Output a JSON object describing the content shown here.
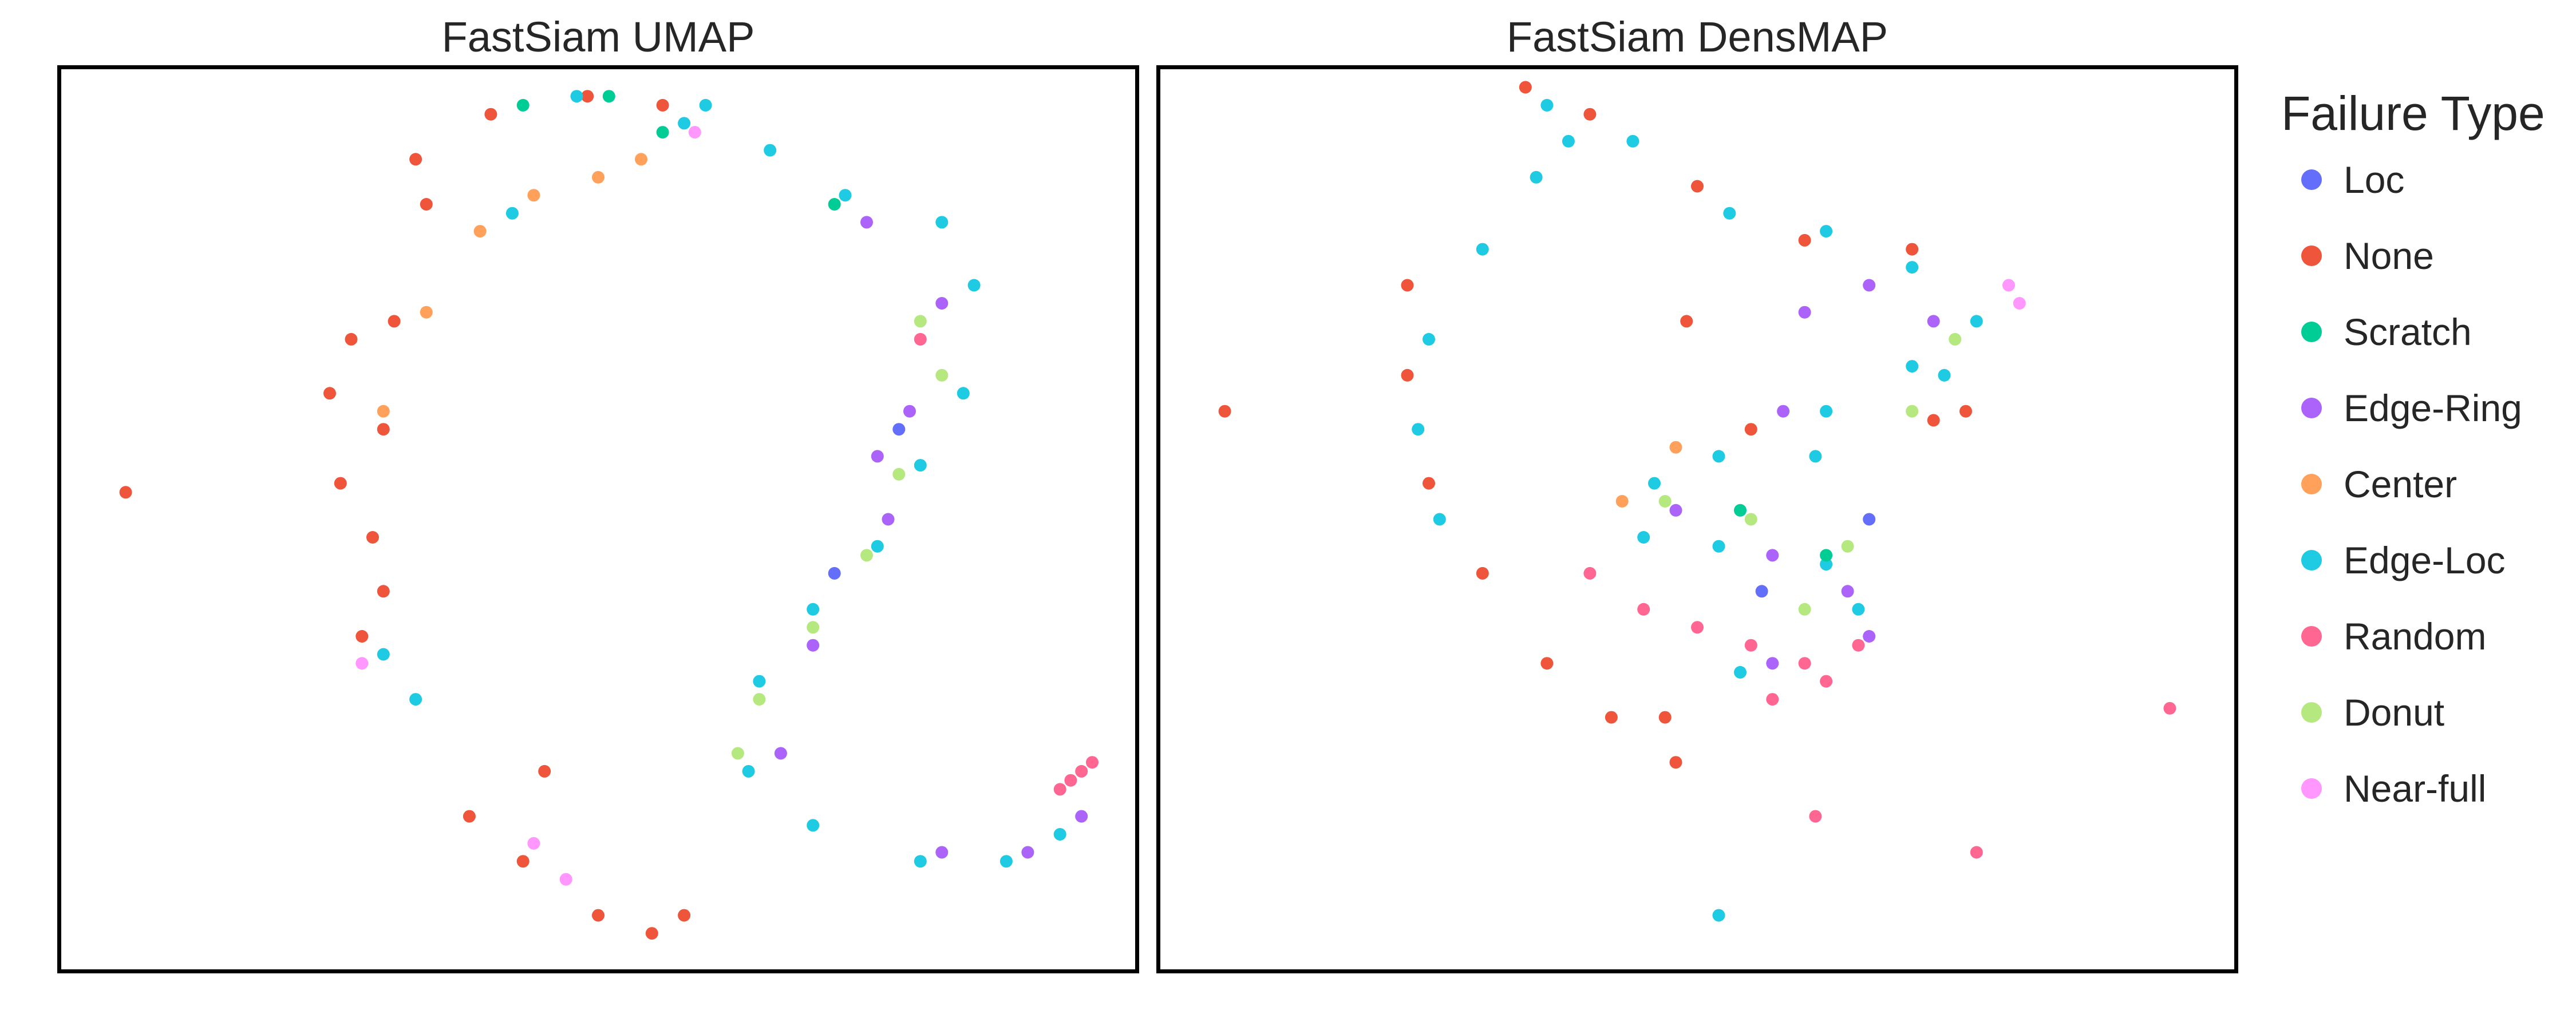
{
  "chart_data": [
    {
      "type": "scatter",
      "title": "FastSiam UMAP",
      "xlabel": "",
      "ylabel": "",
      "grid": false,
      "axis_ticks": false,
      "xlim": [
        0,
        100
      ],
      "ylim": [
        0,
        100
      ],
      "series": [
        {
          "name": "None",
          "color": "#EE553B",
          "points": [
            [
              6,
              53
            ],
            [
              34,
              85
            ],
            [
              31,
              72
            ],
            [
              30,
              60
            ],
            [
              29,
              48
            ],
            [
              28,
              37
            ],
            [
              38,
              17
            ],
            [
              43,
              12
            ],
            [
              50,
              6
            ],
            [
              55,
              4
            ],
            [
              58,
              6
            ],
            [
              45,
              22
            ],
            [
              33,
              90
            ],
            [
              40,
              95
            ],
            [
              49,
              97
            ],
            [
              56,
              96
            ],
            [
              25,
              64
            ],
            [
              27,
              70
            ],
            [
              26,
              54
            ],
            [
              30,
              42
            ]
          ]
        },
        {
          "name": "Edge-Loc",
          "color": "#1ECBE2",
          "points": [
            [
              58,
              94
            ],
            [
              66,
              91
            ],
            [
              73,
              86
            ],
            [
              82,
              83
            ],
            [
              85,
              76
            ],
            [
              84,
              64
            ],
            [
              80,
              56
            ],
            [
              76,
              47
            ],
            [
              70,
              40
            ],
            [
              65,
              32
            ],
            [
              64,
              22
            ],
            [
              70,
              16
            ],
            [
              80,
              12
            ],
            [
              88,
              12
            ],
            [
              93,
              15
            ],
            [
              60,
              96
            ],
            [
              48,
              97
            ],
            [
              42,
              84
            ],
            [
              30,
              35
            ],
            [
              33,
              30
            ]
          ]
        },
        {
          "name": "Edge-Ring",
          "color": "#AB63FA",
          "points": [
            [
              75,
              83
            ],
            [
              82,
              74
            ],
            [
              79,
              62
            ],
            [
              77,
              50
            ],
            [
              70,
              36
            ],
            [
              67,
              24
            ],
            [
              82,
              13
            ],
            [
              90,
              13
            ],
            [
              95,
              17
            ],
            [
              76,
              57
            ]
          ]
        },
        {
          "name": "Donut",
          "color": "#B6E880",
          "points": [
            [
              80,
              72
            ],
            [
              78,
              55
            ],
            [
              75,
              46
            ],
            [
              65,
              30
            ],
            [
              63,
              24
            ],
            [
              70,
              38
            ],
            [
              82,
              66
            ]
          ]
        },
        {
          "name": "Center",
          "color": "#FFA15A",
          "points": [
            [
              39,
              82
            ],
            [
              44,
              86
            ],
            [
              50,
              88
            ],
            [
              54,
              90
            ],
            [
              34,
              73
            ],
            [
              30,
              62
            ]
          ]
        },
        {
          "name": "Scratch",
          "color": "#00CC96",
          "points": [
            [
              51,
              97
            ],
            [
              56,
              93
            ],
            [
              72,
              85
            ],
            [
              43,
              96
            ]
          ]
        },
        {
          "name": "Near-full",
          "color": "#FF97FF",
          "points": [
            [
              59,
              93
            ],
            [
              44,
              14
            ],
            [
              47,
              10
            ],
            [
              28,
              34
            ]
          ]
        },
        {
          "name": "Random",
          "color": "#FF6692",
          "points": [
            [
              93,
              20
            ],
            [
              94,
              21
            ],
            [
              95,
              22
            ],
            [
              96,
              23
            ],
            [
              80,
              70
            ]
          ]
        },
        {
          "name": "Loc",
          "color": "#636EFA",
          "points": [
            [
              78,
              60
            ],
            [
              72,
              44
            ]
          ]
        }
      ]
    },
    {
      "type": "scatter",
      "title": "FastSiam DensMAP",
      "xlabel": "",
      "ylabel": "",
      "grid": false,
      "axis_ticks": false,
      "xlim": [
        0,
        100
      ],
      "ylim": [
        0,
        100
      ],
      "series": [
        {
          "name": "None",
          "color": "#EE553B",
          "points": [
            [
              6,
              62
            ],
            [
              34,
              98
            ],
            [
              40,
              95
            ],
            [
              50,
              87
            ],
            [
              60,
              81
            ],
            [
              70,
              80
            ],
            [
              23,
              76
            ],
            [
              23,
              66
            ],
            [
              25,
              54
            ],
            [
              30,
              44
            ],
            [
              36,
              34
            ],
            [
              42,
              28
            ],
            [
              47,
              28
            ],
            [
              48,
              23
            ],
            [
              55,
              60
            ],
            [
              49,
              72
            ],
            [
              72,
              61
            ],
            [
              75,
              62
            ]
          ]
        },
        {
          "name": "Edge-Loc",
          "color": "#1ECBE2",
          "points": [
            [
              36,
              96
            ],
            [
              44,
              92
            ],
            [
              53,
              84
            ],
            [
              62,
              82
            ],
            [
              70,
              78
            ],
            [
              76,
              72
            ],
            [
              73,
              66
            ],
            [
              62,
              62
            ],
            [
              52,
              57
            ],
            [
              46,
              54
            ],
            [
              45,
              48
            ],
            [
              52,
              47
            ],
            [
              62,
              45
            ],
            [
              65,
              40
            ],
            [
              54,
              33
            ],
            [
              38,
              92
            ],
            [
              35,
              88
            ],
            [
              30,
              80
            ],
            [
              25,
              70
            ],
            [
              24,
              60
            ],
            [
              26,
              50
            ],
            [
              52,
              6
            ],
            [
              61,
              57
            ],
            [
              70,
              67
            ]
          ]
        },
        {
          "name": "Edge-Ring",
          "color": "#AB63FA",
          "points": [
            [
              66,
              76
            ],
            [
              58,
              62
            ],
            [
              48,
              51
            ],
            [
              57,
              46
            ],
            [
              64,
              42
            ],
            [
              66,
              37
            ],
            [
              57,
              34
            ],
            [
              60,
              73
            ],
            [
              72,
              72
            ]
          ]
        },
        {
          "name": "Donut",
          "color": "#B6E880",
          "points": [
            [
              74,
              70
            ],
            [
              47,
              52
            ],
            [
              55,
              50
            ],
            [
              64,
              47
            ],
            [
              60,
              40
            ],
            [
              70,
              62
            ]
          ]
        },
        {
          "name": "Random",
          "color": "#FF6692",
          "points": [
            [
              55,
              36
            ],
            [
              60,
              34
            ],
            [
              65,
              36
            ],
            [
              50,
              38
            ],
            [
              45,
              40
            ],
            [
              57,
              30
            ],
            [
              62,
              32
            ],
            [
              61,
              17
            ],
            [
              76,
              13
            ],
            [
              94,
              29
            ],
            [
              40,
              44
            ]
          ]
        },
        {
          "name": "Near-full",
          "color": "#FF97FF",
          "points": [
            [
              80,
              74
            ],
            [
              79,
              76
            ]
          ]
        },
        {
          "name": "Center",
          "color": "#FFA15A",
          "points": [
            [
              43,
              52
            ],
            [
              48,
              58
            ]
          ]
        },
        {
          "name": "Scratch",
          "color": "#00CC96",
          "points": [
            [
              62,
              46
            ],
            [
              54,
              51
            ]
          ]
        },
        {
          "name": "Loc",
          "color": "#636EFA",
          "points": [
            [
              66,
              50
            ],
            [
              56,
              42
            ]
          ]
        }
      ]
    }
  ],
  "legend": {
    "title": "Failure Type",
    "items": [
      {
        "label": "Loc",
        "color": "#636EFA"
      },
      {
        "label": "None",
        "color": "#EE553B"
      },
      {
        "label": "Scratch",
        "color": "#00CC96"
      },
      {
        "label": "Edge-Ring",
        "color": "#AB63FA"
      },
      {
        "label": "Center",
        "color": "#FFA15A"
      },
      {
        "label": "Edge-Loc",
        "color": "#1ECBE2"
      },
      {
        "label": "Random",
        "color": "#FF6692"
      },
      {
        "label": "Donut",
        "color": "#B6E880"
      },
      {
        "label": "Near-full",
        "color": "#FF97FF"
      }
    ]
  }
}
